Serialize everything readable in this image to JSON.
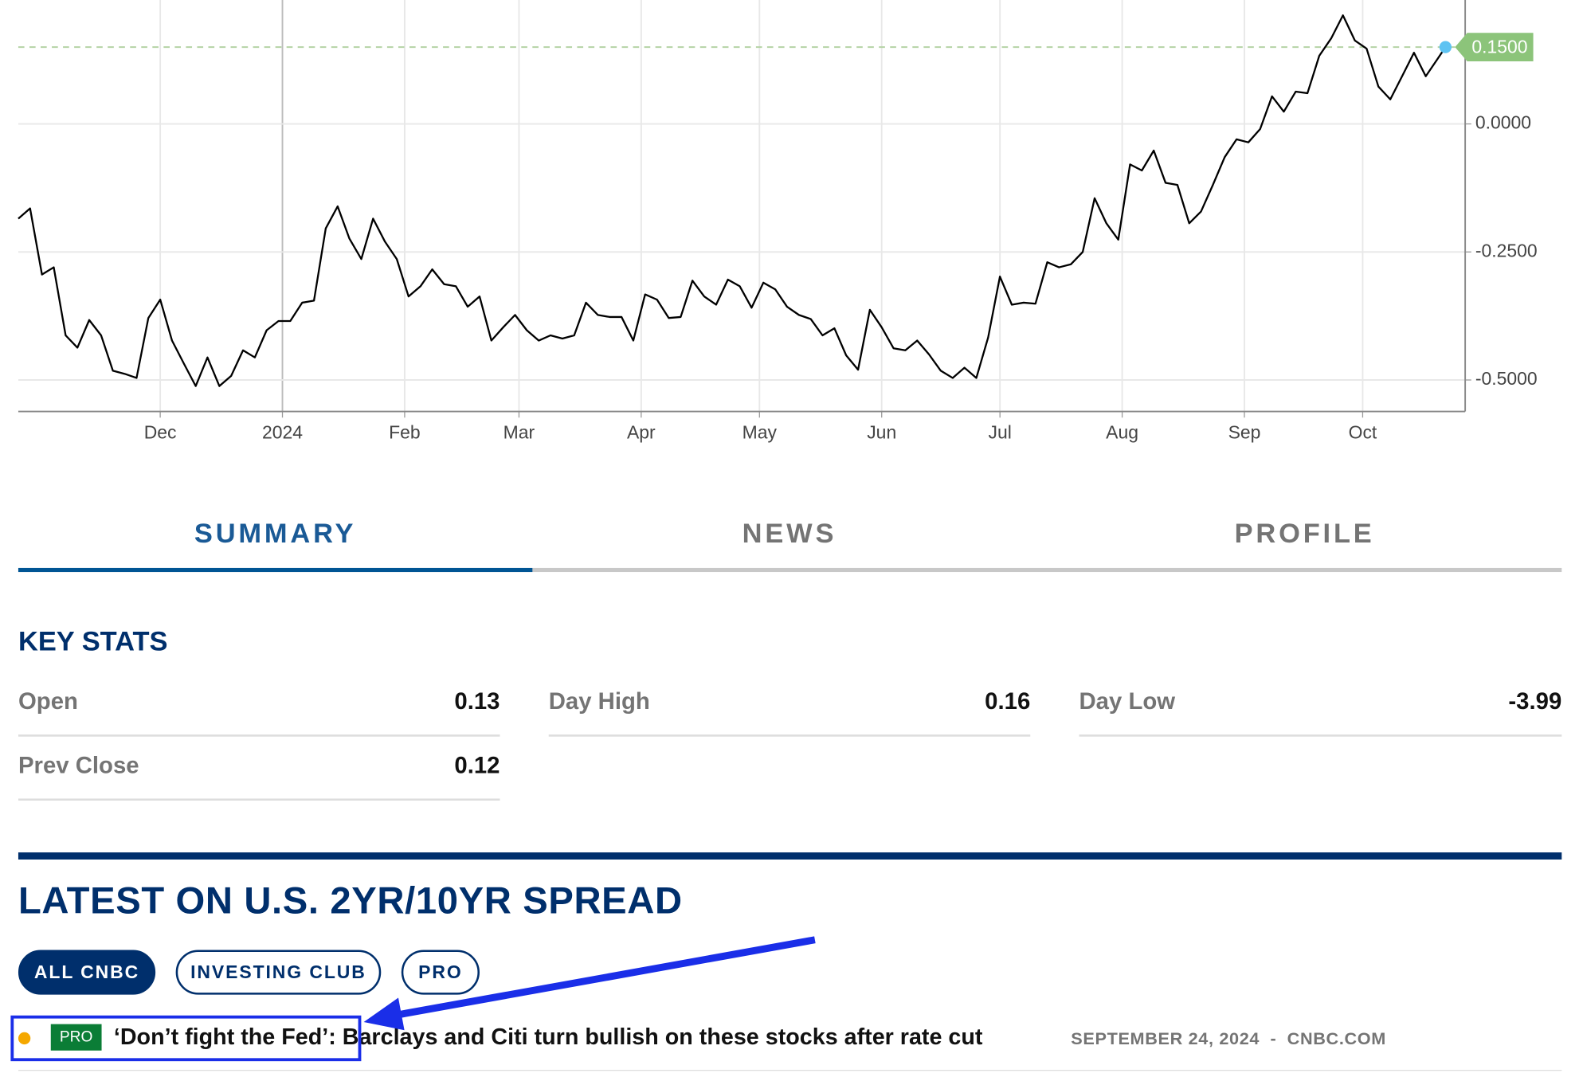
{
  "chart_data": {
    "type": "line",
    "color": "#000000",
    "x": [
      -36,
      -33,
      -30,
      -27,
      -24,
      -21,
      -18,
      -15,
      -12,
      -9,
      -6,
      -3,
      0,
      3,
      6,
      9,
      12,
      15,
      18,
      21,
      24,
      27,
      30,
      33,
      36,
      39,
      42,
      45,
      48,
      51,
      54,
      57,
      60,
      63,
      66,
      69,
      72,
      75,
      78,
      81,
      84,
      87,
      90,
      93,
      96,
      99,
      102,
      105,
      108,
      111,
      114,
      117,
      120,
      123,
      126,
      129,
      132,
      135,
      138,
      141,
      144,
      147,
      150,
      153,
      156,
      159,
      162,
      165,
      168,
      171,
      174,
      177,
      180,
      183,
      186,
      189,
      192,
      195,
      198,
      201,
      204,
      207,
      210,
      213,
      216,
      219,
      222,
      225,
      228,
      231,
      234,
      237,
      240,
      243,
      246,
      249,
      252,
      255,
      258,
      261,
      264,
      267,
      270,
      273,
      276,
      279,
      282,
      285,
      288,
      291,
      294,
      297,
      300,
      303,
      306,
      309,
      312,
      315,
      318,
      321,
      324,
      326
    ],
    "values": [
      -0.185,
      -0.165,
      -0.294,
      -0.28,
      -0.413,
      -0.437,
      -0.383,
      -0.413,
      -0.482,
      -0.488,
      -0.496,
      -0.379,
      -0.343,
      -0.423,
      -0.468,
      -0.512,
      -0.456,
      -0.512,
      -0.492,
      -0.442,
      -0.456,
      -0.403,
      -0.385,
      -0.385,
      -0.349,
      -0.345,
      -0.204,
      -0.161,
      -0.224,
      -0.264,
      -0.185,
      -0.23,
      -0.264,
      -0.337,
      -0.317,
      -0.284,
      -0.313,
      -0.317,
      -0.357,
      -0.337,
      -0.423,
      -0.397,
      -0.373,
      -0.403,
      -0.423,
      -0.413,
      -0.419,
      -0.413,
      -0.349,
      -0.373,
      -0.377,
      -0.377,
      -0.423,
      -0.333,
      -0.343,
      -0.379,
      -0.377,
      -0.306,
      -0.337,
      -0.353,
      -0.304,
      -0.317,
      -0.359,
      -0.31,
      -0.323,
      -0.357,
      -0.373,
      -0.381,
      -0.413,
      -0.399,
      -0.452,
      -0.48,
      -0.363,
      -0.397,
      -0.438,
      -0.442,
      -0.423,
      -0.45,
      -0.482,
      -0.496,
      -0.476,
      -0.496,
      -0.417,
      -0.298,
      -0.353,
      -0.349,
      -0.351,
      -0.27,
      -0.28,
      -0.274,
      -0.25,
      -0.145,
      -0.194,
      -0.226,
      -0.079,
      -0.091,
      -0.052,
      -0.115,
      -0.119,
      -0.194,
      -0.171,
      -0.119,
      -0.065,
      -0.03,
      -0.036,
      -0.01,
      0.054,
      0.024,
      0.063,
      0.06,
      0.133,
      0.167,
      0.212,
      0.163,
      0.147,
      0.073,
      0.048,
      0.093,
      0.139,
      0.093,
      0.127,
      0.15
    ],
    "xlim": [
      -36,
      331
    ],
    "xticks": [
      {
        "value": 0,
        "label": "Dec"
      },
      {
        "value": 31,
        "label": "2024"
      },
      {
        "value": 62,
        "label": "Feb"
      },
      {
        "value": 91,
        "label": "Mar"
      },
      {
        "value": 122,
        "label": "Apr"
      },
      {
        "value": 152,
        "label": "May"
      },
      {
        "value": 183,
        "label": "Jun"
      },
      {
        "value": 213,
        "label": "Jul"
      },
      {
        "value": 244,
        "label": "Aug"
      },
      {
        "value": 275,
        "label": "Sep"
      },
      {
        "value": 305,
        "label": "Oct"
      }
    ],
    "ylim": [
      -0.5615,
      0.242
    ],
    "yticks": [
      {
        "value": -0.5,
        "label": "-0.5000"
      },
      {
        "value": -0.25,
        "label": "-0.2500"
      },
      {
        "value": 0,
        "label": "0.0000"
      }
    ],
    "reference_line": {
      "value": 0.15,
      "label": "0.1500"
    },
    "grid": true
  },
  "tabs": [
    "SUMMARY",
    "NEWS",
    "PROFILE"
  ],
  "key_stats": {
    "title": "KEY STATS",
    "items": [
      {
        "label": "Open",
        "value": "0.13"
      },
      {
        "label": "Day High",
        "value": "0.16"
      },
      {
        "label": "Day Low",
        "value": "-3.99"
      },
      {
        "label": "Prev Close",
        "value": "0.12"
      }
    ]
  },
  "latest": {
    "title": "LATEST ON U.S. 2YR/10YR SPREAD",
    "filters": [
      "ALL CNBC",
      "INVESTING CLUB",
      "PRO"
    ],
    "article": {
      "badge": "PRO",
      "headline": "‘Don’t fight the Fed’: Barclays and Citi turn bullish on these stocks after rate cut",
      "date": "SEPTEMBER 24, 2024",
      "separator": "-",
      "source": "CNBC.COM"
    }
  }
}
